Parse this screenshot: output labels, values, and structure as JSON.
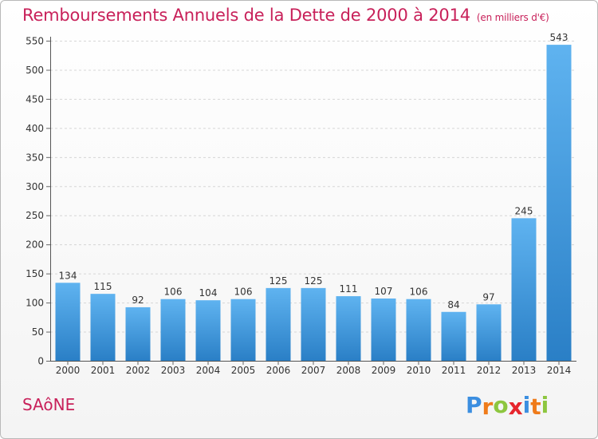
{
  "chart_data": {
    "type": "bar",
    "title": "Remboursements Annuels de la Dette de 2000 à 2014",
    "subtitle": "(en milliers d'€)",
    "categories": [
      "2000",
      "2001",
      "2002",
      "2003",
      "2004",
      "2005",
      "2006",
      "2007",
      "2008",
      "2009",
      "2010",
      "2011",
      "2012",
      "2013",
      "2014"
    ],
    "values": [
      134,
      115,
      92,
      106,
      104,
      106,
      125,
      125,
      111,
      107,
      106,
      84,
      97,
      245,
      543
    ],
    "xlabel": "",
    "ylabel": "",
    "ylim": [
      0,
      550
    ],
    "yticks": [
      0,
      50,
      100,
      150,
      200,
      250,
      300,
      350,
      400,
      450,
      500,
      550
    ],
    "grid": true,
    "bar_color": "#3d9be0"
  },
  "footer": {
    "commune": "SAôNE",
    "logo_letters": [
      "P",
      "r",
      "o",
      "x",
      "i",
      "t",
      "i"
    ],
    "logo_colors": [
      "#3b8ee0",
      "#ef7b1a",
      "#8dc63f",
      "#e6262d",
      "#3b8ee0",
      "#ef7b1a",
      "#8dc63f"
    ]
  }
}
